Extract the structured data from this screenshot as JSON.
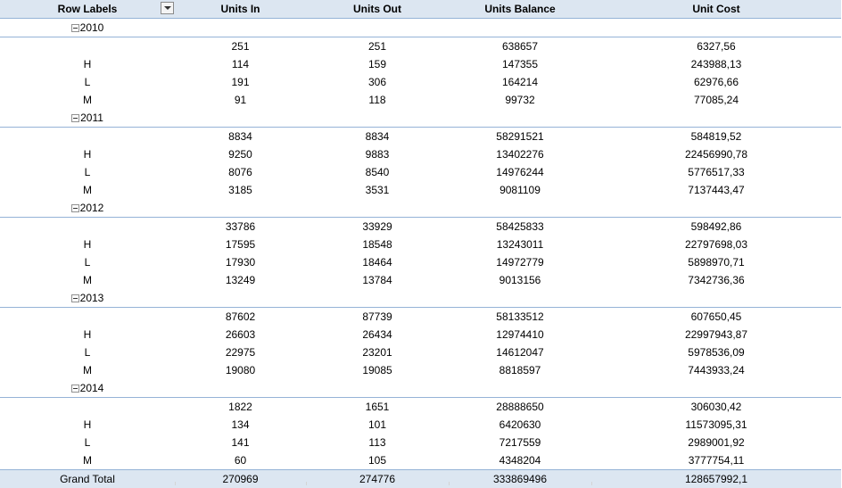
{
  "pivot": {
    "headers": [
      "Row Labels",
      "Units In",
      "Units Out",
      "Units Balance",
      "Unit Cost"
    ],
    "groups": [
      {
        "year": "2010",
        "rows": [
          {
            "label": "",
            "units_in": "251",
            "units_out": "251",
            "units_balance": "638657",
            "unit_cost": "6327,56"
          },
          {
            "label": "H",
            "units_in": "114",
            "units_out": "159",
            "units_balance": "147355",
            "unit_cost": "243988,13"
          },
          {
            "label": "L",
            "units_in": "191",
            "units_out": "306",
            "units_balance": "164214",
            "unit_cost": "62976,66"
          },
          {
            "label": "M",
            "units_in": "91",
            "units_out": "118",
            "units_balance": "99732",
            "unit_cost": "77085,24"
          }
        ]
      },
      {
        "year": "2011",
        "rows": [
          {
            "label": "",
            "units_in": "8834",
            "units_out": "8834",
            "units_balance": "58291521",
            "unit_cost": "584819,52"
          },
          {
            "label": "H",
            "units_in": "9250",
            "units_out": "9883",
            "units_balance": "13402276",
            "unit_cost": "22456990,78"
          },
          {
            "label": "L",
            "units_in": "8076",
            "units_out": "8540",
            "units_balance": "14976244",
            "unit_cost": "5776517,33"
          },
          {
            "label": "M",
            "units_in": "3185",
            "units_out": "3531",
            "units_balance": "9081109",
            "unit_cost": "7137443,47"
          }
        ]
      },
      {
        "year": "2012",
        "rows": [
          {
            "label": "",
            "units_in": "33786",
            "units_out": "33929",
            "units_balance": "58425833",
            "unit_cost": "598492,86"
          },
          {
            "label": "H",
            "units_in": "17595",
            "units_out": "18548",
            "units_balance": "13243011",
            "unit_cost": "22797698,03"
          },
          {
            "label": "L",
            "units_in": "17930",
            "units_out": "18464",
            "units_balance": "14972779",
            "unit_cost": "5898970,71"
          },
          {
            "label": "M",
            "units_in": "13249",
            "units_out": "13784",
            "units_balance": "9013156",
            "unit_cost": "7342736,36"
          }
        ]
      },
      {
        "year": "2013",
        "rows": [
          {
            "label": "",
            "units_in": "87602",
            "units_out": "87739",
            "units_balance": "58133512",
            "unit_cost": "607650,45"
          },
          {
            "label": "H",
            "units_in": "26603",
            "units_out": "26434",
            "units_balance": "12974410",
            "unit_cost": "22997943,87"
          },
          {
            "label": "L",
            "units_in": "22975",
            "units_out": "23201",
            "units_balance": "14612047",
            "unit_cost": "5978536,09"
          },
          {
            "label": "M",
            "units_in": "19080",
            "units_out": "19085",
            "units_balance": "8818597",
            "unit_cost": "7443933,24"
          }
        ]
      },
      {
        "year": "2014",
        "rows": [
          {
            "label": "",
            "units_in": "1822",
            "units_out": "1651",
            "units_balance": "28888650",
            "unit_cost": "306030,42"
          },
          {
            "label": "H",
            "units_in": "134",
            "units_out": "101",
            "units_balance": "6420630",
            "unit_cost": "11573095,31"
          },
          {
            "label": "L",
            "units_in": "141",
            "units_out": "113",
            "units_balance": "7217559",
            "unit_cost": "2989001,92"
          },
          {
            "label": "M",
            "units_in": "60",
            "units_out": "105",
            "units_balance": "4348204",
            "unit_cost": "3777754,11"
          }
        ]
      }
    ],
    "grand_total": {
      "label": "Grand Total",
      "units_in": "270969",
      "units_out": "274776",
      "units_balance": "333869496",
      "unit_cost": "128657992,1"
    }
  },
  "icons": {
    "filter": "filter-dropdown-icon",
    "collapse": "collapse-minus-icon"
  },
  "colors": {
    "header_bg": "#dce6f1",
    "border": "#95b3d7"
  }
}
